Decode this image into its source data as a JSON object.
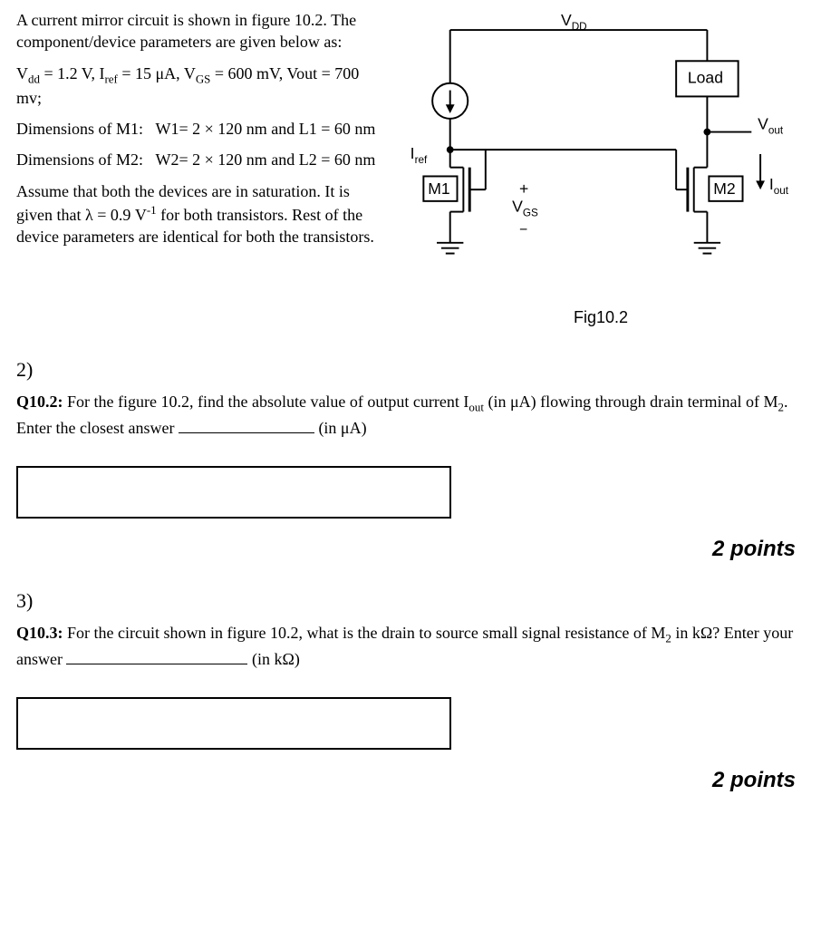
{
  "intro": {
    "p1_html": "A current mirror circuit is shown in figure 10.2. The component/device parameters are given below as:",
    "p2_html": "V<sub>dd</sub> = 1.2 V, I<sub>ref</sub> = 15 &mu;A, V<sub>GS</sub> = 600 mV, Vout = 700 mv;",
    "p3_html": "Dimensions of M1:&nbsp;&nbsp;&nbsp;W1= 2 &times; 120 nm and L1 = 60 nm",
    "p4_html": "Dimensions of M2:&nbsp;&nbsp;&nbsp;W2= 2 &times; 120 nm and L2 = 60 nm",
    "p5_html": "Assume that both the devices are in saturation. It is given that &lambda; = 0.9 V<sup>-1</sup> for both transistors. Rest of the device parameters are identical for both the transistors."
  },
  "circuit": {
    "labels": {
      "vdd": "V",
      "vdd_sub": "DD",
      "load": "Load",
      "vout": "V",
      "vout_sub": "out",
      "iout": "I",
      "iout_sub": "out",
      "iref": "I",
      "iref_sub": "ref",
      "m1": "M1",
      "m2": "M2",
      "vgs": "V",
      "vgs_sub": "GS",
      "plus": "+",
      "minus": "−"
    },
    "caption": "Fig10.2",
    "stroke": "#000000",
    "stroke_width": 2
  },
  "q2": {
    "num": "2)",
    "label": "Q10.2:",
    "body_html": " For the figure 10.2, find the absolute value of output current I<sub>out</sub> (in &mu;A) flowing through drain terminal of M<sub>2</sub>. Enter the closest answer ",
    "unit_html": " (in &mu;A)",
    "points": "2 points"
  },
  "q3": {
    "num": "3)",
    "label": "Q10.3:",
    "body_html": " For the circuit shown in figure 10.2, what is the drain to source small signal resistance of M<sub>2</sub> in k&Omega;? Enter your answer ",
    "unit_html": " (in k&Omega;)",
    "points": "2 points"
  }
}
